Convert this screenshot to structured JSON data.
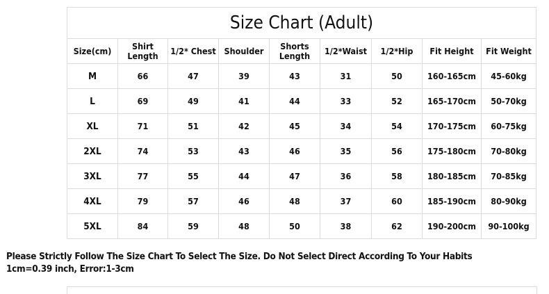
{
  "title": "Size Chart (Adult)",
  "headers": [
    "Size(cm)",
    "Shirt\nLength",
    "1/2* Chest",
    "Shoulder",
    "Shorts\nLength",
    "1/2*Waist",
    "1/2*Hip",
    "Fit Height",
    "Fit Weight"
  ],
  "rows": [
    [
      "M",
      "66",
      "47",
      "39",
      "43",
      "31",
      "50",
      "160-165cm",
      "45-60kg"
    ],
    [
      "L",
      "69",
      "49",
      "41",
      "44",
      "33",
      "52",
      "165-170cm",
      "50-70kg"
    ],
    [
      "XL",
      "71",
      "51",
      "42",
      "45",
      "34",
      "54",
      "170-175cm",
      "60-75kg"
    ],
    [
      "2XL",
      "74",
      "53",
      "43",
      "46",
      "35",
      "56",
      "175-180cm",
      "70-80kg"
    ],
    [
      "3XL",
      "77",
      "55",
      "44",
      "47",
      "36",
      "58",
      "180-185cm",
      "70-85kg"
    ],
    [
      "4XL",
      "79",
      "57",
      "46",
      "48",
      "37",
      "60",
      "185-190cm",
      "80-90kg"
    ],
    [
      "5XL",
      "84",
      "59",
      "48",
      "50",
      "38",
      "62",
      "190-200cm",
      "90-100kg"
    ]
  ],
  "notes": [
    "Please Strictly Follow The Size Chart To Select The Size. Do Not Select Direct According To Your Habits",
    "1cm=0.39 inch, Error:1-3cm"
  ]
}
